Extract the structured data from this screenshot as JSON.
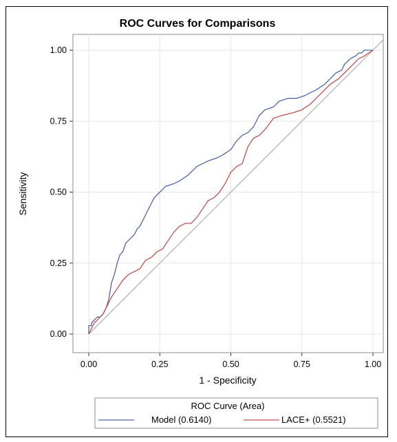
{
  "chart_data": {
    "type": "line",
    "title": "ROC Curves for Comparisons",
    "xlabel": "1 - Specificity",
    "ylabel": "Sensitivity",
    "xlim": [
      0,
      1
    ],
    "ylim": [
      0,
      1
    ],
    "xticks": [
      0,
      0.25,
      0.5,
      0.75,
      1
    ],
    "yticks": [
      0,
      0.25,
      0.5,
      0.75,
      1
    ],
    "xtick_labels": [
      "0.00",
      "0.25",
      "0.50",
      "0.75",
      "1.00"
    ],
    "ytick_labels": [
      "0.00",
      "0.25",
      "0.50",
      "0.75",
      "1.00"
    ],
    "grid": true,
    "legend": {
      "title": "ROC Curve (Area)",
      "placement": "bottom"
    },
    "reference_line": {
      "x": [
        0,
        1
      ],
      "y": [
        0,
        1
      ],
      "color": "#b3b3b3"
    },
    "series": [
      {
        "name": "Model",
        "area_label": "(0.6140)",
        "color": "#4e66a8",
        "x": [
          0,
          0,
          0.01,
          0.01,
          0.02,
          0.03,
          0.04,
          0.05,
          0.06,
          0.07,
          0.08,
          0.09,
          0.1,
          0.11,
          0.12,
          0.13,
          0.14,
          0.15,
          0.16,
          0.17,
          0.18,
          0.19,
          0.2,
          0.21,
          0.22,
          0.23,
          0.24,
          0.25,
          0.26,
          0.27,
          0.3,
          0.32,
          0.35,
          0.38,
          0.4,
          0.42,
          0.45,
          0.47,
          0.5,
          0.52,
          0.54,
          0.56,
          0.58,
          0.6,
          0.62,
          0.65,
          0.67,
          0.7,
          0.73,
          0.76,
          0.8,
          0.83,
          0.85,
          0.87,
          0.89,
          0.9,
          0.92,
          0.94,
          0.95,
          0.96,
          0.97,
          0.98,
          0.99,
          1.0
        ],
        "y": [
          0,
          0.03,
          0.03,
          0.04,
          0.05,
          0.06,
          0.06,
          0.07,
          0.09,
          0.12,
          0.18,
          0.21,
          0.25,
          0.28,
          0.29,
          0.32,
          0.33,
          0.34,
          0.35,
          0.37,
          0.38,
          0.4,
          0.42,
          0.44,
          0.46,
          0.48,
          0.49,
          0.5,
          0.51,
          0.52,
          0.53,
          0.54,
          0.56,
          0.59,
          0.6,
          0.61,
          0.62,
          0.63,
          0.65,
          0.68,
          0.7,
          0.71,
          0.73,
          0.77,
          0.79,
          0.8,
          0.82,
          0.83,
          0.83,
          0.84,
          0.86,
          0.88,
          0.9,
          0.92,
          0.93,
          0.95,
          0.97,
          0.98,
          0.99,
          0.99,
          1.0,
          1.0,
          1.0,
          1.0
        ]
      },
      {
        "name": "LACE+",
        "area_label": "(0.5521)",
        "color": "#c0504d",
        "x": [
          0,
          0.01,
          0.02,
          0.03,
          0.04,
          0.05,
          0.06,
          0.07,
          0.08,
          0.1,
          0.12,
          0.14,
          0.16,
          0.18,
          0.2,
          0.22,
          0.24,
          0.26,
          0.28,
          0.3,
          0.32,
          0.34,
          0.36,
          0.38,
          0.4,
          0.42,
          0.44,
          0.46,
          0.48,
          0.5,
          0.52,
          0.54,
          0.56,
          0.58,
          0.6,
          0.62,
          0.65,
          0.68,
          0.72,
          0.75,
          0.78,
          0.8,
          0.83,
          0.85,
          0.88,
          0.9,
          0.92,
          0.95,
          0.97,
          1.0
        ],
        "y": [
          0,
          0.02,
          0.04,
          0.05,
          0.06,
          0.07,
          0.09,
          0.11,
          0.13,
          0.16,
          0.19,
          0.21,
          0.22,
          0.23,
          0.26,
          0.27,
          0.29,
          0.3,
          0.33,
          0.36,
          0.38,
          0.39,
          0.39,
          0.41,
          0.44,
          0.47,
          0.48,
          0.5,
          0.53,
          0.57,
          0.59,
          0.6,
          0.66,
          0.69,
          0.7,
          0.72,
          0.76,
          0.77,
          0.78,
          0.79,
          0.81,
          0.83,
          0.86,
          0.88,
          0.9,
          0.92,
          0.94,
          0.97,
          0.98,
          1.0
        ]
      }
    ]
  }
}
